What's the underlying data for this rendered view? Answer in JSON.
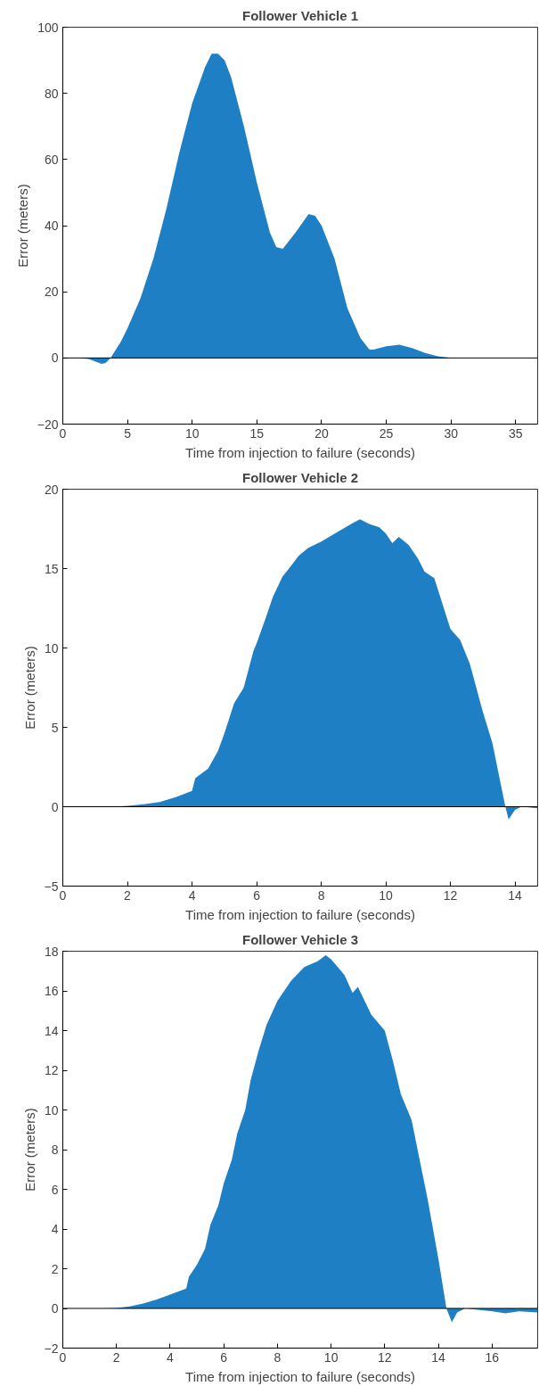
{
  "chart_data": [
    {
      "type": "area",
      "title": "Follower Vehicle 1",
      "xlabel": "Time from injection to failure (seconds)",
      "ylabel": "Error (meters)",
      "xlim": [
        0,
        36.7
      ],
      "xticks": [
        0,
        5,
        10,
        15,
        20,
        25,
        30,
        35
      ],
      "ylim": [
        -20,
        100
      ],
      "yticks": [
        -20,
        0,
        20,
        40,
        60,
        80,
        100
      ],
      "grid": false,
      "ref_lines": [
        {
          "axis": "y",
          "value": 0,
          "color": "#000000"
        }
      ],
      "series": [
        {
          "color": "#1f7fc4",
          "x": [
            0,
            1,
            2,
            3,
            3.3,
            3.7,
            4.5,
            5,
            6,
            7,
            8,
            9,
            10,
            11,
            11.5,
            12,
            12.5,
            13,
            14,
            15,
            16,
            16.5,
            17,
            18,
            19,
            19.5,
            20,
            21,
            22,
            23,
            23.7,
            24,
            25,
            26,
            27,
            28,
            29,
            30,
            33,
            36.7
          ],
          "values": [
            0,
            0,
            -0.3,
            -1.8,
            -1.5,
            0,
            5,
            9,
            18,
            30,
            45,
            62,
            77,
            88,
            92,
            92,
            90,
            85,
            70,
            53,
            38,
            33.5,
            33,
            38,
            43.5,
            43,
            40,
            30,
            15,
            6,
            2.5,
            2.5,
            3.5,
            4,
            3,
            1.5,
            0.5,
            0,
            0,
            0
          ]
        }
      ]
    },
    {
      "type": "area",
      "title": "Follower Vehicle 2",
      "xlabel": "Time from injection to failure (seconds)",
      "ylabel": "Error (meters)",
      "xlim": [
        0,
        14.7
      ],
      "xticks": [
        0,
        2,
        4,
        6,
        8,
        10,
        12,
        14
      ],
      "ylim": [
        -5,
        20
      ],
      "yticks": [
        -5,
        0,
        5,
        10,
        15,
        20
      ],
      "grid": false,
      "ref_lines": [
        {
          "axis": "y",
          "value": 0,
          "color": "#000000"
        }
      ],
      "series": [
        {
          "color": "#1f7fc4",
          "x": [
            0,
            1,
            1.5,
            2,
            2.5,
            3,
            3.5,
            4,
            4.1,
            4.5,
            4.8,
            5,
            5.3,
            5.6,
            5.9,
            6,
            6.3,
            6.5,
            6.8,
            7,
            7.3,
            7.6,
            8,
            8.5,
            9,
            9.2,
            9.5,
            9.8,
            10,
            10.2,
            10.4,
            10.7,
            11,
            11.2,
            11.5,
            12,
            12.3,
            12.6,
            13,
            13.3,
            13.5,
            13.7,
            13.8,
            14,
            14.2,
            14.7
          ],
          "values": [
            0,
            0,
            0,
            0.05,
            0.15,
            0.3,
            0.6,
            1,
            1.8,
            2.4,
            3.5,
            4.6,
            6.5,
            7.5,
            9.8,
            10.3,
            12,
            13.2,
            14.5,
            15,
            15.8,
            16.3,
            16.7,
            17.3,
            17.9,
            18.1,
            17.8,
            17.6,
            17.2,
            16.6,
            17,
            16.5,
            15.6,
            14.8,
            14.4,
            11.2,
            10.5,
            9,
            6,
            4,
            2,
            0,
            -0.8,
            -0.2,
            0,
            -0.1
          ]
        }
      ]
    },
    {
      "type": "area",
      "title": "Follower Vehicle 3",
      "xlabel": "Time from injection to failure (seconds)",
      "ylabel": "Error (meters)",
      "xlim": [
        0,
        17.7
      ],
      "xticks": [
        0,
        2,
        4,
        6,
        8,
        10,
        12,
        14,
        16
      ],
      "ylim": [
        -2,
        18
      ],
      "yticks": [
        -2,
        0,
        2,
        4,
        6,
        8,
        10,
        12,
        14,
        16,
        18
      ],
      "grid": false,
      "ref_lines": [
        {
          "axis": "y",
          "value": 0,
          "color": "#000000"
        }
      ],
      "series": [
        {
          "color": "#1f7fc4",
          "x": [
            0,
            1.5,
            2,
            2.5,
            3,
            3.5,
            4,
            4.6,
            4.7,
            5,
            5.3,
            5.5,
            5.8,
            6,
            6.3,
            6.5,
            6.8,
            7,
            7.3,
            7.6,
            8,
            8.5,
            9,
            9.5,
            9.8,
            10,
            10.5,
            10.8,
            11,
            11.5,
            12,
            12.3,
            12.6,
            13,
            13.3,
            13.6,
            14,
            14.3,
            14.5,
            14.7,
            15,
            16,
            16.5,
            17,
            17.7
          ],
          "values": [
            0,
            0,
            0.02,
            0.1,
            0.25,
            0.45,
            0.7,
            1,
            1.6,
            2.2,
            3,
            4.2,
            5.2,
            6.3,
            7.5,
            8.8,
            10,
            11.5,
            13,
            14.3,
            15.5,
            16.5,
            17.2,
            17.5,
            17.8,
            17.6,
            16.8,
            15.9,
            16.2,
            14.8,
            14,
            12.5,
            10.8,
            9.5,
            7.5,
            5.5,
            2.5,
            0,
            -0.7,
            -0.2,
            0,
            -0.15,
            -0.25,
            -0.15,
            -0.2
          ]
        }
      ]
    }
  ]
}
